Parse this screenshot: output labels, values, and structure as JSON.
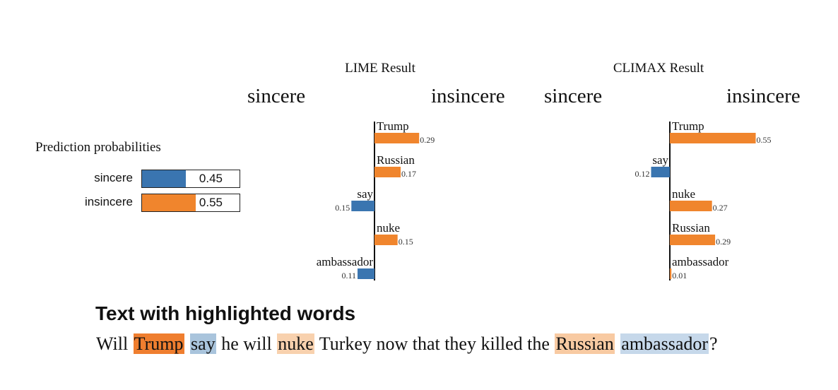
{
  "prediction": {
    "title": "Prediction probabilities",
    "rows": [
      {
        "label": "sincere",
        "value": 0.45,
        "value_text": "0.45",
        "color": "#3a75b0"
      },
      {
        "label": "insincere",
        "value": 0.55,
        "value_text": "0.55",
        "color": "#f0852d"
      }
    ]
  },
  "colors": {
    "sincere": "#3a75b0",
    "insincere": "#f0852d"
  },
  "chart_data": [
    {
      "type": "bar",
      "title": "LIME Result",
      "neg_label": "sincere",
      "pos_label": "insincere",
      "xlim": [
        -0.3,
        0.6
      ],
      "bars": [
        {
          "word": "Trump",
          "value": 0.29,
          "label": "0.29"
        },
        {
          "word": "Russian",
          "value": 0.17,
          "label": "0.17"
        },
        {
          "word": "say",
          "value": -0.15,
          "label": "0.15"
        },
        {
          "word": "nuke",
          "value": 0.15,
          "label": "0.15"
        },
        {
          "word": "ambassador",
          "value": -0.11,
          "label": "0.11"
        }
      ]
    },
    {
      "type": "bar",
      "title": "CLIMAX Result",
      "neg_label": "sincere",
      "pos_label": "insincere",
      "xlim": [
        -0.3,
        0.6
      ],
      "bars": [
        {
          "word": "Trump",
          "value": 0.55,
          "label": "0.55"
        },
        {
          "word": "say",
          "value": -0.12,
          "label": "0.12"
        },
        {
          "word": "nuke",
          "value": 0.27,
          "label": "0.27"
        },
        {
          "word": "Russian",
          "value": 0.29,
          "label": "0.29"
        },
        {
          "word": "ambassador",
          "value": 0.01,
          "label": "0.01"
        }
      ]
    }
  ],
  "highlight": {
    "title": "Text with highlighted words",
    "tokens": [
      {
        "text": "Will "
      },
      {
        "text": "Trump",
        "bg": "#ef7e2f"
      },
      {
        "text": " "
      },
      {
        "text": "say",
        "bg": "#a9c4dc"
      },
      {
        "text": " he will "
      },
      {
        "text": "nuke",
        "bg": "#f8d1ae"
      },
      {
        "text": " Turkey now that they killed the "
      },
      {
        "text": "Russian",
        "bg": "#f8caa2"
      },
      {
        "text": " "
      },
      {
        "text": "ambassador",
        "bg": "#c6d8ea"
      },
      {
        "text": "?"
      }
    ]
  }
}
